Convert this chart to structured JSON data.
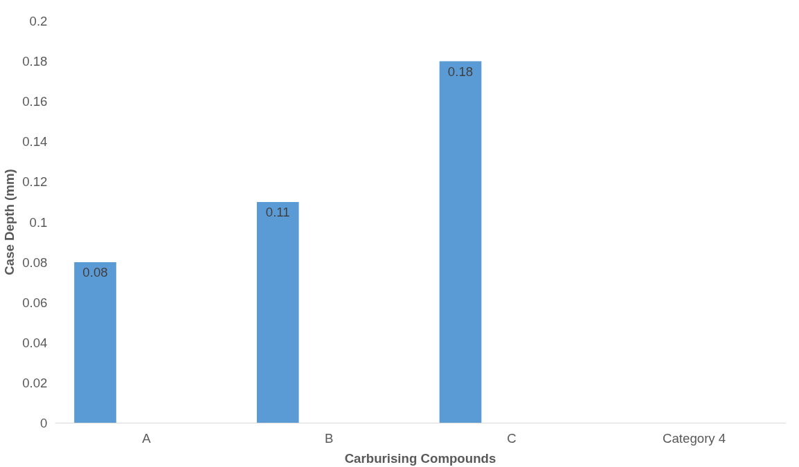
{
  "chart_data": {
    "type": "bar",
    "xlabel": "Carburising Compounds",
    "ylabel": "Case Depth (mm)",
    "categories": [
      "A",
      "B",
      "C",
      "Category 4"
    ],
    "values": [
      0.08,
      0.11,
      0.18,
      null
    ],
    "color": "#5b9bd5",
    "ylim": [
      0,
      0.2
    ],
    "yticks": [
      0,
      0.02,
      0.04,
      0.06,
      0.08,
      0.1,
      0.12,
      0.14,
      0.16,
      0.18,
      0.2
    ],
    "data_labels": true,
    "grid": false
  }
}
